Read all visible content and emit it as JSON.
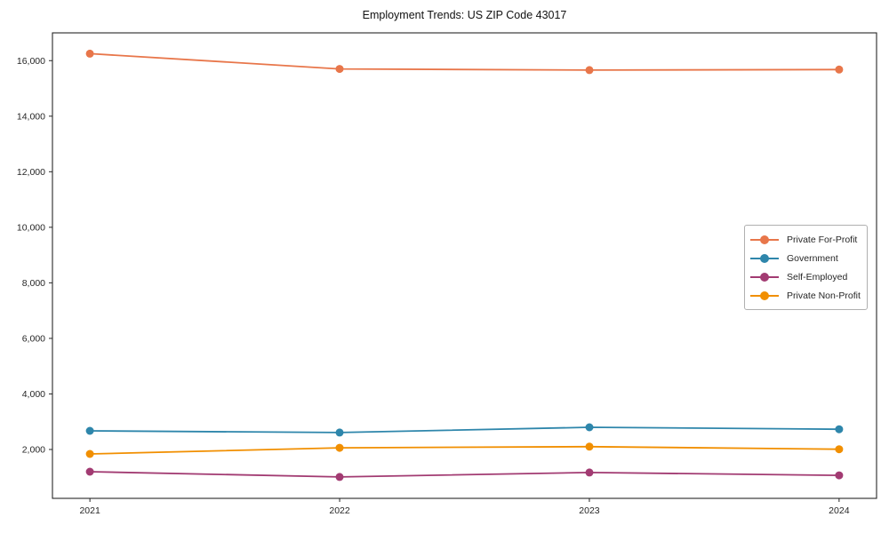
{
  "header": {
    "title": "Employment Trends: US ZIP Code 43017"
  },
  "chart_data": {
    "type": "line",
    "title": "Employment Trends: US ZIP Code 43017",
    "x": [
      2021,
      2022,
      2023,
      2024
    ],
    "x_tick_labels": [
      "2021",
      "2022",
      "2023",
      "2024"
    ],
    "xlim": [
      2020.85,
      2024.15
    ],
    "ylim": [
      240,
      17000
    ],
    "yticks": [
      2000,
      4000,
      6000,
      8000,
      10000,
      12000,
      14000,
      16000
    ],
    "ytick_labels": [
      "2,000",
      "4,000",
      "6,000",
      "8,000",
      "10,000",
      "12,000",
      "14,000",
      "16,000"
    ],
    "grid": false,
    "legend_position": "center-right",
    "axis_color": "#262626",
    "marker": "circle",
    "series": [
      {
        "name": "Private For-Profit",
        "color": "#E8764A",
        "values": [
          16250,
          15700,
          15660,
          15680
        ]
      },
      {
        "name": "Government",
        "color": "#2E86AB",
        "values": [
          2670,
          2610,
          2800,
          2730
        ]
      },
      {
        "name": "Self-Employed",
        "color": "#A23B72",
        "values": [
          1200,
          1010,
          1170,
          1070
        ]
      },
      {
        "name": "Private Non-Profit",
        "color": "#F18F01",
        "values": [
          1840,
          2060,
          2100,
          2010
        ]
      }
    ]
  }
}
